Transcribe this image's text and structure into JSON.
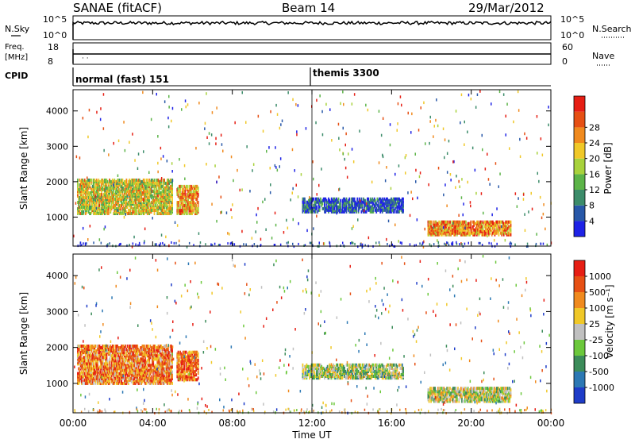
{
  "header": {
    "station": "SANAE (fitACF)",
    "beam": "Beam 14",
    "date": "29/Mar/2012"
  },
  "top_panels": {
    "nsky_label": "N.Sky",
    "nsky_ticks": [
      "10^5",
      "10^0"
    ],
    "nsearch_label": "N.Search",
    "nsearch_ticks": [
      "10^5",
      "10^0"
    ],
    "freq_label": "Freq.",
    "freq_unit": "[MHz]",
    "freq_ticks": [
      "18",
      "8"
    ],
    "nave_label": "Nave",
    "nave_ticks": [
      "60",
      "0"
    ],
    "cpid_label": "CPID",
    "cpid_modes": [
      {
        "label": "normal (fast) 151",
        "start": "00:00"
      },
      {
        "label": "themis 3300",
        "start": "12:00"
      }
    ]
  },
  "chart_data": [
    {
      "type": "heatmap",
      "title": "",
      "ylabel": "Slant Range [km]",
      "ylim": [
        180,
        4600
      ],
      "yticks": [
        "1000",
        "2000",
        "3000",
        "4000"
      ],
      "xticks": [
        "00:00",
        "04:00",
        "08:00",
        "12:00",
        "16:00",
        "20:00",
        "00:00"
      ],
      "colorbar_label": "Power [dB]",
      "colorbar_ticks": [
        "4",
        "8",
        "12",
        "16",
        "20",
        "24",
        "28"
      ],
      "colorbar_colors": [
        "#1e22e6",
        "#2858a8",
        "#3c8c6a",
        "#5cb448",
        "#a8d23c",
        "#f0c828",
        "#f08a1e",
        "#e65014",
        "#e61e14"
      ],
      "regions": [
        {
          "t_start": 0.2,
          "t_end": 5.0,
          "r_min": 1100,
          "r_max": 2100,
          "level": 0.55
        },
        {
          "t_start": 5.2,
          "t_end": 6.3,
          "r_min": 1100,
          "r_max": 1900,
          "level": 0.7
        },
        {
          "t_start": 17.8,
          "t_end": 22.0,
          "r_min": 500,
          "r_max": 900,
          "level": 0.75
        },
        {
          "t_start": 11.5,
          "t_end": 16.6,
          "r_min": 1150,
          "r_max": 1550,
          "level": 0.15
        }
      ]
    },
    {
      "type": "heatmap",
      "title": "",
      "ylabel": "Slant Range [km]",
      "ylim": [
        180,
        4600
      ],
      "yticks": [
        "1000",
        "2000",
        "3000",
        "4000"
      ],
      "xticks": [
        "00:00",
        "04:00",
        "08:00",
        "12:00",
        "16:00",
        "20:00",
        "00:00"
      ],
      "xlabel": "Time UT",
      "colorbar_label": "Velocity [m s⁻¹]",
      "colorbar_ticks": [
        "1000",
        "500",
        "100",
        "25",
        "-25",
        "-100",
        "-500",
        "-1000"
      ],
      "colorbar_colors": [
        "#1e3cc8",
        "#2c78b4",
        "#3c8c5a",
        "#6cc83c",
        "#c0c0c0",
        "#f0c828",
        "#f08a1e",
        "#e65014",
        "#e61e14"
      ],
      "regions": [
        {
          "t_start": 0.2,
          "t_end": 5.0,
          "r_min": 1000,
          "r_max": 2100,
          "level": 0.75
        },
        {
          "t_start": 5.2,
          "t_end": 6.3,
          "r_min": 1100,
          "r_max": 1900,
          "level": 0.8
        },
        {
          "t_start": 17.8,
          "t_end": 22.0,
          "r_min": 500,
          "r_max": 900,
          "level": 0.5
        },
        {
          "t_start": 11.5,
          "t_end": 16.6,
          "r_min": 1150,
          "r_max": 1550,
          "level": 0.45
        }
      ]
    }
  ]
}
